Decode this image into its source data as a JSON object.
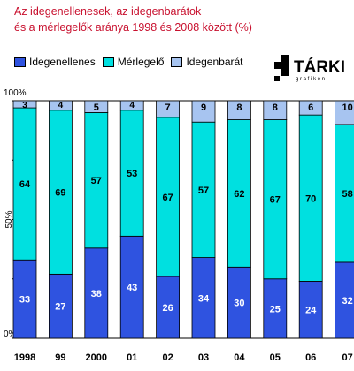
{
  "chart_data": {
    "type": "bar",
    "stacked": true,
    "title": [
      "Az idegenellenesek, az idegenbarátok",
      "és a mérlegelők aránya 1998 és 2008 között (%)"
    ],
    "categories": [
      "1998",
      "99",
      "2000",
      "01",
      "02",
      "03",
      "04",
      "05",
      "06",
      "07"
    ],
    "series": [
      {
        "name": "Idegenellenes",
        "color": "#2f53e0",
        "values": [
          33,
          27,
          38,
          43,
          26,
          34,
          30,
          25,
          24,
          29
        ]
      },
      {
        "name": "Mérlegelő",
        "color": "#00e0e0",
        "values": [
          64,
          69,
          57,
          53,
          67,
          57,
          62,
          67,
          70,
          61
        ]
      },
      {
        "name": "Idegenbarát",
        "color": "#a7c4f0",
        "values": [
          3,
          4,
          5,
          4,
          7,
          9,
          8,
          8,
          6,
          10
        ]
      }
    ],
    "yticks": [
      "0%",
      "50%",
      "100%"
    ],
    "ylim": [
      0,
      100
    ],
    "legend_position": "top-left",
    "partial_column": {
      "label": "07",
      "values": [
        32,
        58,
        10
      ]
    }
  },
  "logo": {
    "text": "TÁRKI",
    "subtext": "g r a f i k o n"
  }
}
